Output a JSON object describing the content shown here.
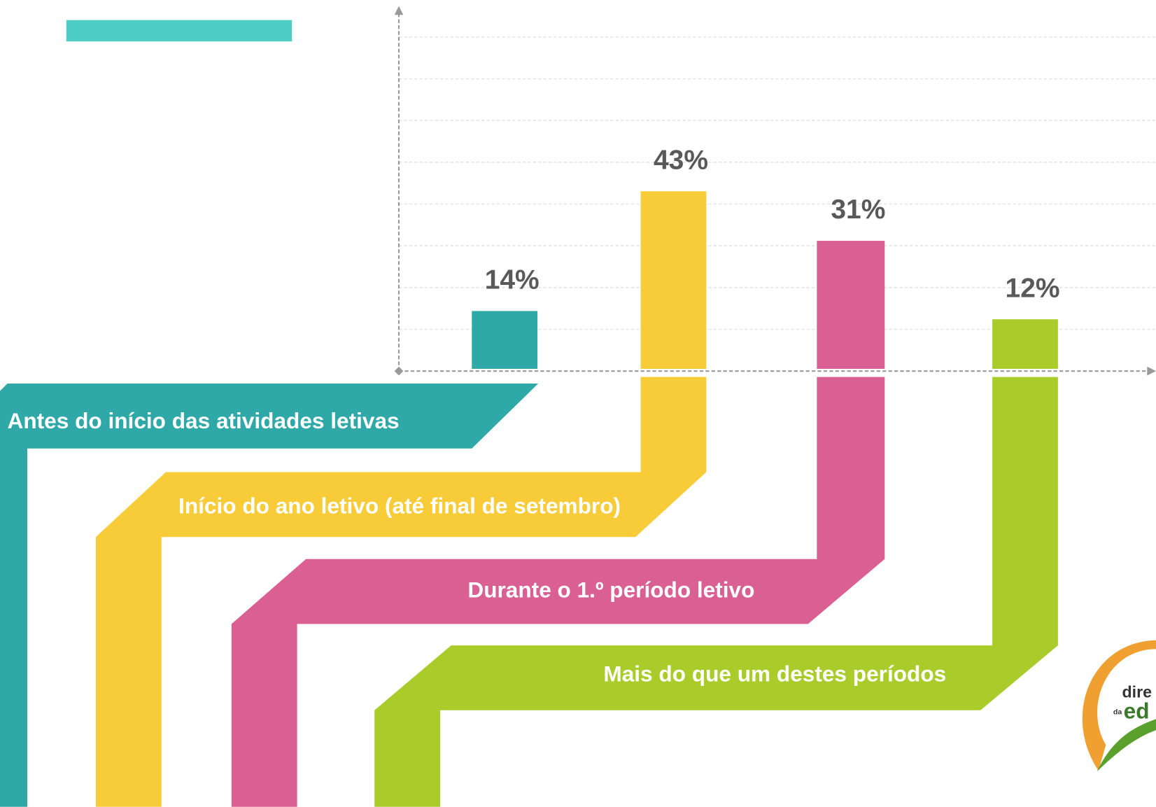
{
  "chart_data": {
    "type": "bar",
    "categories": [
      "Antes do início das atividades letivas",
      "Início do ano letivo (até final de setembro)",
      "Durante o 1.º período letivo",
      "Mais do que um destes períodos"
    ],
    "values": [
      14,
      43,
      31,
      12
    ],
    "value_labels": [
      "14%",
      "43%",
      "31%",
      "12%"
    ],
    "colors": [
      "#2fa8a8",
      "#f8cb38",
      "#da5f93",
      "#a9cc2a"
    ],
    "ylim": [
      0,
      80
    ],
    "grid": true
  },
  "logo": {
    "line1": "dire",
    "small": "da",
    "line2": "ed"
  }
}
